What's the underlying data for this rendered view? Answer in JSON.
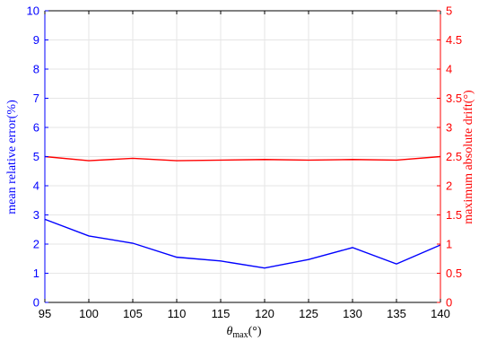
{
  "chart_data": {
    "type": "line",
    "x": [
      95,
      100,
      105,
      110,
      115,
      120,
      125,
      130,
      135,
      140
    ],
    "xlim": [
      95,
      140
    ],
    "x_ticks": [
      "95",
      "100",
      "105",
      "110",
      "115",
      "120",
      "125",
      "130",
      "135",
      "140"
    ],
    "xlabel": "θmax(°)",
    "xlabel_main": "θ",
    "xlabel_sub": "max",
    "xlabel_unit": "(°)",
    "ylabel_left": "mean relative error(%)",
    "ylim_left": [
      0,
      10
    ],
    "y_ticks_left": [
      "0",
      "1",
      "2",
      "3",
      "4",
      "5",
      "6",
      "7",
      "8",
      "9",
      "10"
    ],
    "ylabel_right": "maximum absolute drift(°)",
    "ylim_right": [
      0,
      5
    ],
    "y_ticks_right": [
      "0",
      "0.5",
      "1",
      "1.5",
      "2",
      "2.5",
      "3",
      "3.5",
      "4",
      "4.5",
      "5"
    ],
    "grid": true,
    "colors": {
      "left_axis": "#0000ff",
      "right_axis": "#ff0000",
      "grid": "#e6e6e6"
    },
    "series": [
      {
        "axis": "left",
        "color": "#0000ff",
        "values": [
          2.85,
          2.28,
          2.03,
          1.55,
          1.42,
          1.18,
          1.47,
          1.88,
          1.32,
          1.97
        ]
      },
      {
        "axis": "right",
        "color": "#ff0000",
        "values": [
          2.5,
          2.43,
          2.47,
          2.43,
          2.44,
          2.45,
          2.44,
          2.45,
          2.44,
          2.5
        ]
      }
    ]
  }
}
